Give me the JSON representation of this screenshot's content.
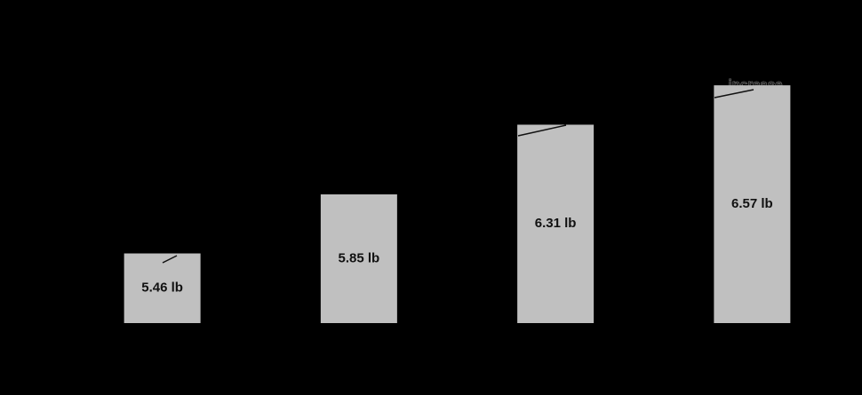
{
  "chart_data": {
    "type": "bar",
    "categories": [
      null,
      null,
      null,
      null
    ],
    "values": [
      5.46,
      5.85,
      6.31,
      6.57
    ],
    "value_labels": [
      "5.46 lb",
      "5.85 lb",
      "6.31 lb",
      "6.57 lb"
    ],
    "color": "#c0c0c0",
    "ylim": [
      5,
      6.6
    ],
    "annotation": "increase"
  }
}
